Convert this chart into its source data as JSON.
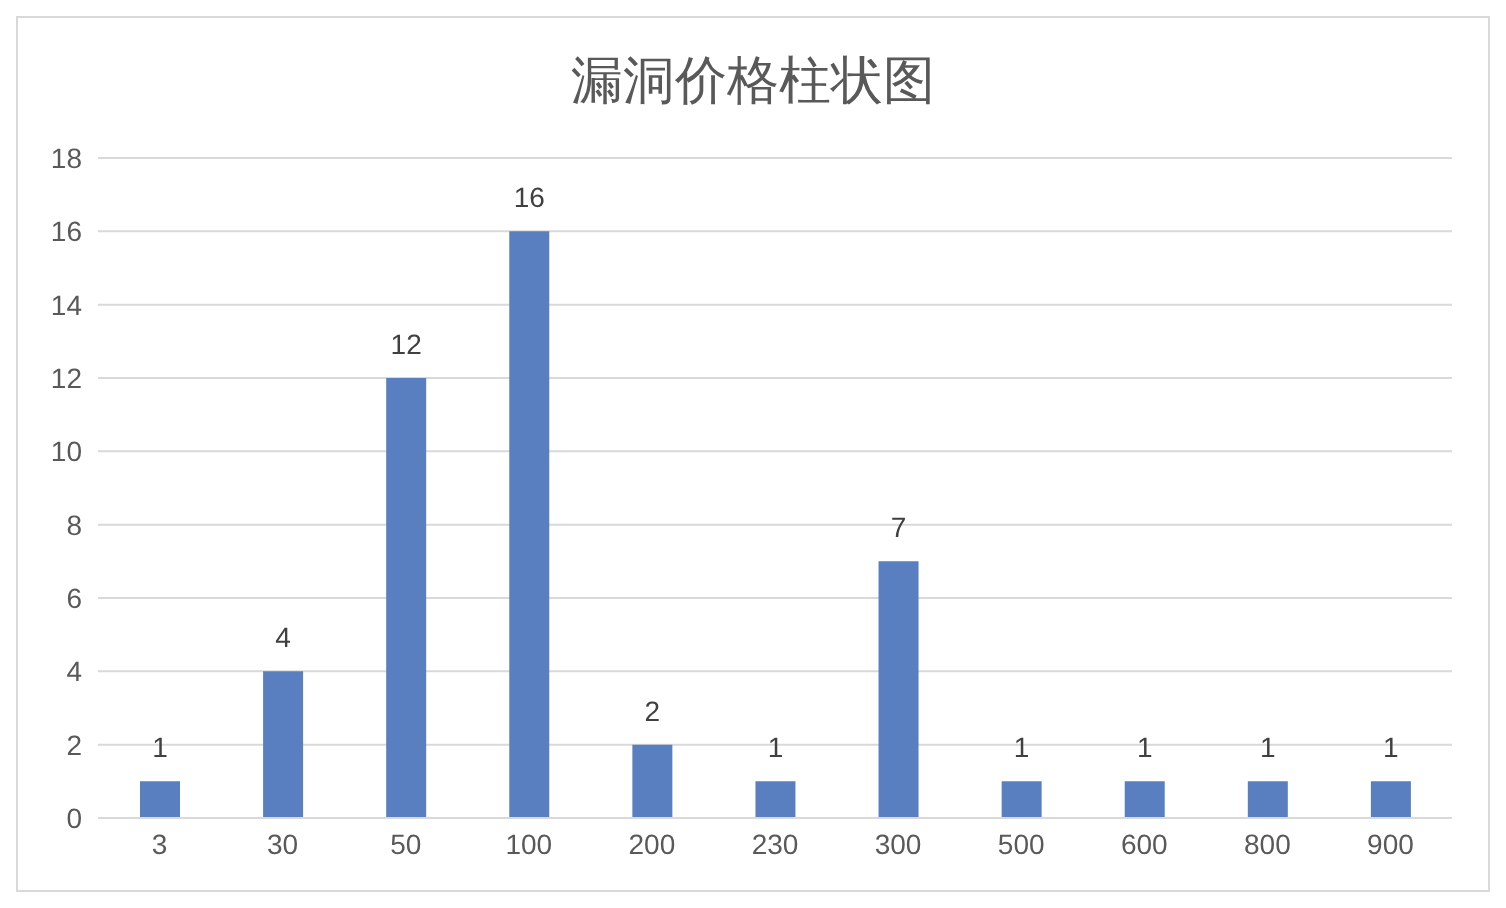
{
  "chart_data": {
    "type": "bar",
    "title": "漏洞价格柱状图",
    "categories": [
      "3",
      "30",
      "50",
      "100",
      "200",
      "230",
      "300",
      "500",
      "600",
      "800",
      "900"
    ],
    "values": [
      1,
      4,
      12,
      16,
      2,
      1,
      7,
      1,
      1,
      1,
      1
    ],
    "color": "#5a7fc0",
    "ylim": [
      0,
      18
    ],
    "yticks": [
      0,
      2,
      4,
      6,
      8,
      10,
      12,
      14,
      16,
      18
    ],
    "grid": "y",
    "data_labels": true
  }
}
